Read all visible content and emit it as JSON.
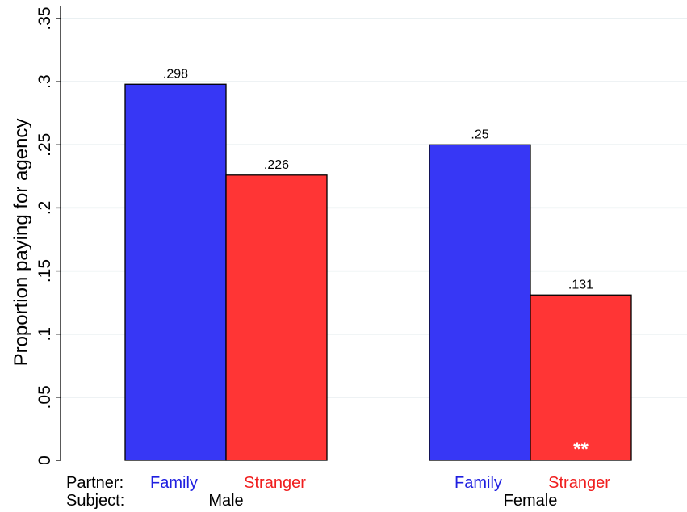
{
  "chart_data": {
    "type": "bar",
    "ylabel": "Proportion paying for agency",
    "ylim": [
      0,
      0.35
    ],
    "yticks": [
      {
        "value": 0,
        "label": "0"
      },
      {
        "value": 0.05,
        "label": ".05"
      },
      {
        "value": 0.1,
        "label": ".1"
      },
      {
        "value": 0.15,
        "label": ".15"
      },
      {
        "value": 0.2,
        "label": ".2"
      },
      {
        "value": 0.25,
        "label": ".25"
      },
      {
        "value": 0.3,
        "label": ".3"
      },
      {
        "value": 0.35,
        "label": ".35"
      }
    ],
    "grid": true,
    "legend": "none",
    "row_labels": {
      "partner": "Partner:",
      "subject": "Subject:"
    },
    "groups": [
      {
        "subject": "Male",
        "bars": [
          {
            "partner": "Family",
            "value": 0.298,
            "label": ".298",
            "color": "#3737f5",
            "significance": ""
          },
          {
            "partner": "Stranger",
            "value": 0.226,
            "label": ".226",
            "color": "#ff3535",
            "significance": ""
          }
        ]
      },
      {
        "subject": "Female",
        "bars": [
          {
            "partner": "Family",
            "value": 0.25,
            "label": ".25",
            "color": "#3737f5",
            "significance": ""
          },
          {
            "partner": "Stranger",
            "value": 0.131,
            "label": ".131",
            "color": "#ff3535",
            "significance": "**"
          }
        ]
      }
    ],
    "partner_label_colors": {
      "Family": "#1f1fe0",
      "Stranger": "#f01e1e"
    }
  }
}
